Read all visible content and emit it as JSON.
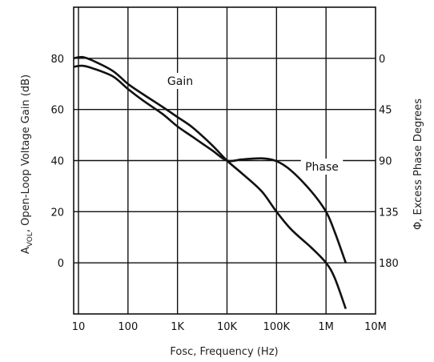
{
  "chart_data": {
    "type": "line",
    "title": "",
    "xlabel": "Fosc, Frequency (Hz)",
    "ylabel_main": "A",
    "ylabel_sub": "VOL",
    "ylabel_rest": ", Open-Loop Voltage Gain (dB)",
    "y2label": "Φ, Excess Phase Degrees",
    "x_scale": "log",
    "xlim": [
      8,
      10000000
    ],
    "ylim": [
      -20,
      100
    ],
    "y2lim": [
      225,
      -45
    ],
    "grid": true,
    "x_ticks": [
      {
        "value": 10,
        "label": "10"
      },
      {
        "value": 100,
        "label": "100"
      },
      {
        "value": 1000,
        "label": "1K"
      },
      {
        "value": 10000,
        "label": "10K"
      },
      {
        "value": 100000,
        "label": "100K"
      },
      {
        "value": 1000000,
        "label": "1M"
      },
      {
        "value": 10000000,
        "label": "10M"
      }
    ],
    "y_ticks": [
      {
        "value": 80,
        "label": "80"
      },
      {
        "value": 60,
        "label": "60"
      },
      {
        "value": 40,
        "label": "40"
      },
      {
        "value": 20,
        "label": "20"
      },
      {
        "value": 0,
        "label": "0"
      }
    ],
    "y2_ticks": [
      {
        "value": 0,
        "label": "0"
      },
      {
        "value": 45,
        "label": "45"
      },
      {
        "value": 90,
        "label": "90"
      },
      {
        "value": 135,
        "label": "135"
      },
      {
        "value": 180,
        "label": "180"
      }
    ],
    "series": [
      {
        "name": "Gain",
        "axis": "left",
        "x": [
          8,
          12,
          20,
          50,
          100,
          200,
          500,
          1000,
          2000,
          5000,
          10000,
          20000,
          50000,
          100000,
          200000,
          500000,
          1000000,
          1500000,
          2500000
        ],
        "y": [
          80.0,
          80.5,
          79.0,
          75.0,
          70.0,
          66.0,
          61.0,
          57.0,
          53.0,
          46.0,
          40.0,
          35.0,
          28.0,
          20.0,
          13.0,
          6.0,
          0.0,
          -6.0,
          -18.0
        ]
      },
      {
        "name": "Phase",
        "axis": "right",
        "x": [
          8,
          12,
          20,
          50,
          100,
          200,
          500,
          1000,
          2000,
          5000,
          10000,
          20000,
          50000,
          100000,
          200000,
          500000,
          1000000,
          1500000,
          2500000
        ],
        "y": [
          7.5,
          6.5,
          9.0,
          16.0,
          27.0,
          37.0,
          49.0,
          60.0,
          69.0,
          81.0,
          90.0,
          89.0,
          88.0,
          90.5,
          99.0,
          117.0,
          135.0,
          153.0,
          180.0
        ]
      }
    ],
    "annotations": [
      {
        "text": "Gain",
        "series": "Gain"
      },
      {
        "text": "Phase",
        "series": "Phase"
      }
    ]
  }
}
